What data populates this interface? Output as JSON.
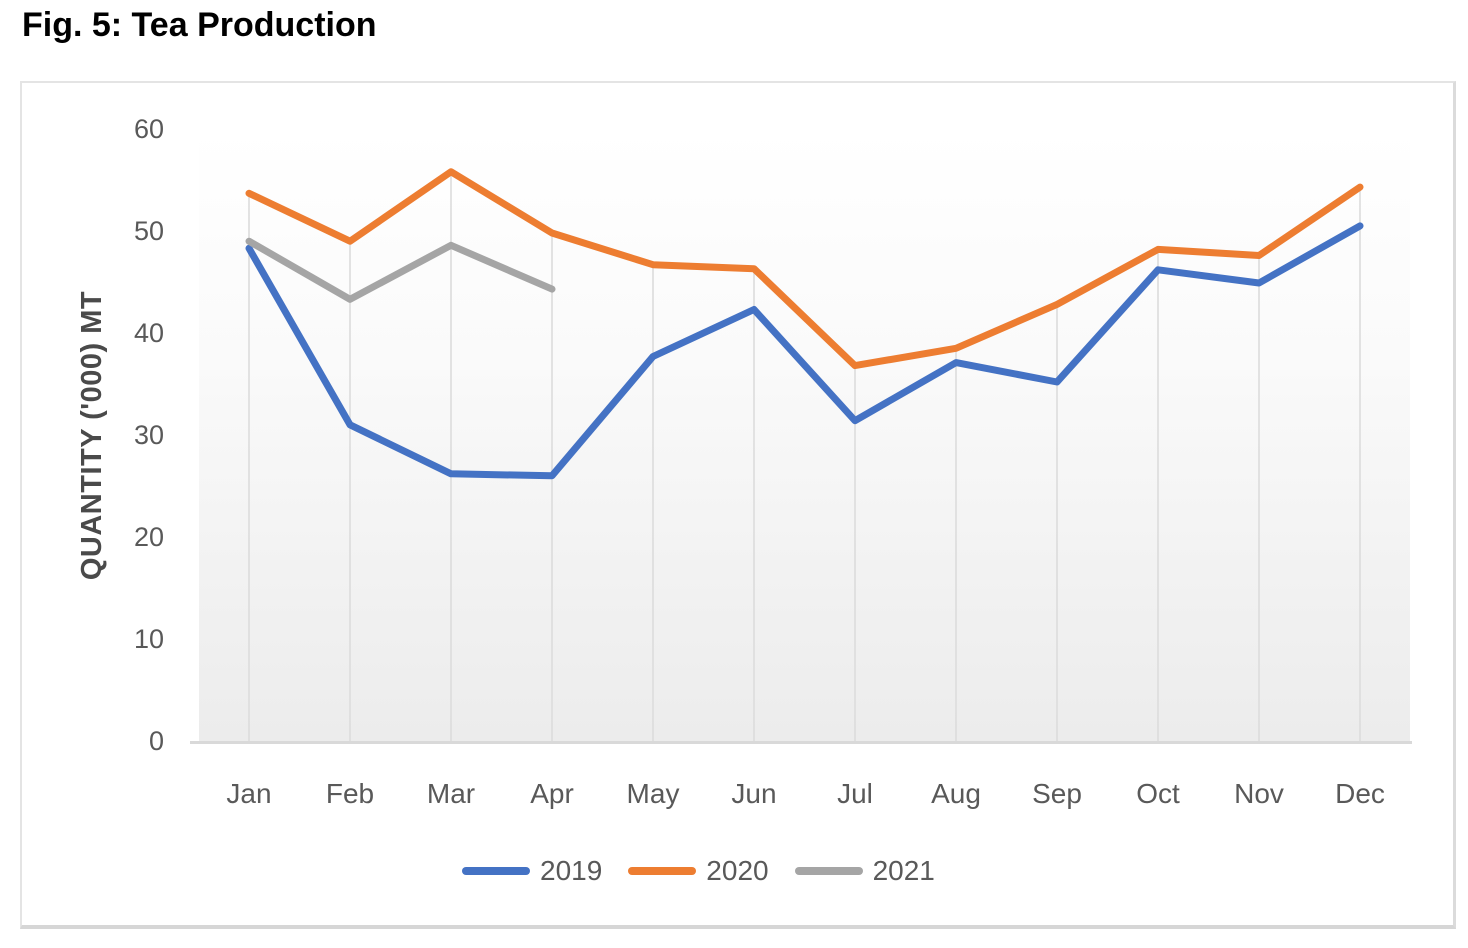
{
  "title": "Fig. 5: Tea Production",
  "colors": {
    "axis_text": "#595959",
    "grid_drop_lines": "#DCDCDC",
    "axis_line": "#D9D9D9",
    "title_text": "#000000"
  },
  "chart_data": {
    "type": "line",
    "title": "Fig. 5: Tea Production",
    "xlabel": "",
    "ylabel": "QUANTITY ('000) MT",
    "ylim": [
      0,
      60
    ],
    "yticks": [
      0,
      10,
      20,
      30,
      40,
      50,
      60
    ],
    "categories": [
      "Jan",
      "Feb",
      "Mar",
      "Apr",
      "May",
      "Jun",
      "Jul",
      "Aug",
      "Sep",
      "Oct",
      "Nov",
      "Dec"
    ],
    "grid": "vertical drop lines from top series to x-axis, no horizontal gridlines",
    "legend_position": "bottom",
    "series": [
      {
        "name": "2019",
        "color": "#4472C4",
        "values": [
          48.3,
          31.0,
          26.2,
          26.0,
          37.7,
          42.3,
          31.4,
          37.1,
          35.2,
          46.2,
          44.9,
          50.5
        ]
      },
      {
        "name": "2020",
        "color": "#ED7D31",
        "values": [
          53.7,
          49.0,
          55.8,
          49.8,
          46.7,
          46.3,
          36.8,
          38.5,
          42.8,
          48.2,
          47.6,
          54.3
        ]
      },
      {
        "name": "2021",
        "color": "#A5A5A5",
        "values": [
          49.0,
          43.3,
          48.6,
          44.3,
          null,
          null,
          null,
          null,
          null,
          null,
          null,
          null
        ]
      }
    ]
  }
}
